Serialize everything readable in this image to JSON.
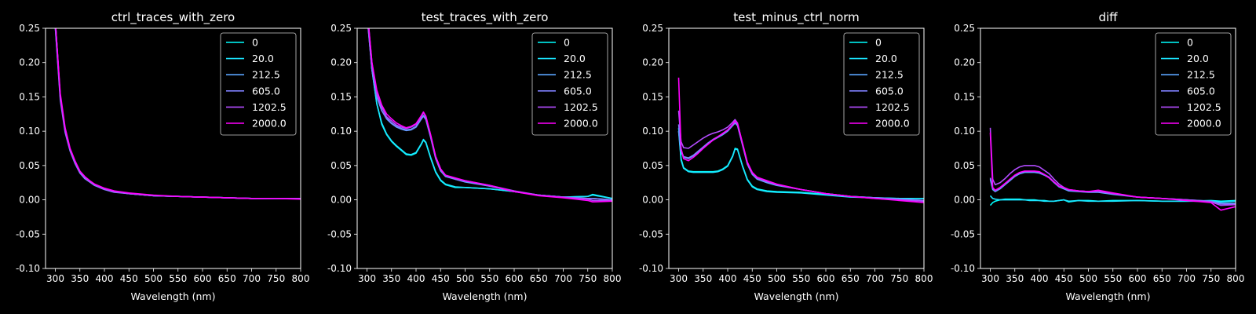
{
  "figure": {
    "background": "#000000",
    "foreground": "#ffffff"
  },
  "legend_labels": [
    "0",
    "20.0",
    "212.5",
    "605.0",
    "1202.5",
    "2000.0"
  ],
  "series_colors": [
    "#00ffff",
    "#1ae5ff",
    "#5aa5ff",
    "#7f80ff",
    "#b34cff",
    "#ff00ff"
  ],
  "chart_data": [
    {
      "type": "line",
      "title": "ctrl_traces_with_zero",
      "xlabel": "Wavelength (nm)",
      "xlim": [
        280,
        800
      ],
      "ylim": [
        -0.1,
        0.25
      ],
      "xticks": [
        300,
        350,
        400,
        450,
        500,
        550,
        600,
        650,
        700,
        750,
        800
      ],
      "yticks": [
        "-0.10",
        "-0.05",
        "0.00",
        "0.05",
        "0.10",
        "0.15",
        "0.20",
        "0.25"
      ],
      "legend_position": "upper right",
      "x": [
        300,
        310,
        320,
        330,
        340,
        350,
        360,
        370,
        380,
        400,
        420,
        450,
        500,
        550,
        600,
        650,
        700,
        750,
        800
      ],
      "series": [
        {
          "name": "0",
          "values": [
            0.26,
            0.15,
            0.1,
            0.072,
            0.055,
            0.04,
            0.032,
            0.027,
            0.022,
            0.016,
            0.012,
            0.009,
            0.006,
            0.005,
            0.004,
            0.003,
            0.002,
            0.002,
            0.002
          ]
        },
        {
          "name": "20.0",
          "values": [
            0.26,
            0.15,
            0.1,
            0.073,
            0.055,
            0.041,
            0.032,
            0.027,
            0.022,
            0.016,
            0.012,
            0.009,
            0.006,
            0.005,
            0.004,
            0.003,
            0.002,
            0.002,
            0.002
          ]
        },
        {
          "name": "212.5",
          "values": [
            0.25,
            0.15,
            0.1,
            0.072,
            0.054,
            0.04,
            0.031,
            0.026,
            0.021,
            0.016,
            0.012,
            0.009,
            0.006,
            0.005,
            0.004,
            0.003,
            0.002,
            0.002,
            0.002
          ]
        },
        {
          "name": "605.0",
          "values": [
            0.25,
            0.145,
            0.098,
            0.071,
            0.053,
            0.039,
            0.031,
            0.026,
            0.021,
            0.015,
            0.011,
            0.009,
            0.006,
            0.005,
            0.004,
            0.003,
            0.002,
            0.002,
            0.002
          ]
        },
        {
          "name": "1202.5",
          "values": [
            0.26,
            0.15,
            0.1,
            0.073,
            0.055,
            0.041,
            0.033,
            0.027,
            0.022,
            0.016,
            0.012,
            0.009,
            0.006,
            0.005,
            0.004,
            0.003,
            0.002,
            0.002,
            0.002
          ]
        },
        {
          "name": "2000.0",
          "values": [
            0.26,
            0.155,
            0.105,
            0.075,
            0.057,
            0.042,
            0.034,
            0.028,
            0.023,
            0.017,
            0.013,
            0.01,
            0.007,
            0.005,
            0.004,
            0.003,
            0.002,
            0.002,
            0.001
          ]
        }
      ]
    },
    {
      "type": "line",
      "title": "test_traces_with_zero",
      "xlabel": "Wavelength (nm)",
      "xlim": [
        280,
        800
      ],
      "ylim": [
        -0.1,
        0.25
      ],
      "xticks": [
        300,
        350,
        400,
        450,
        500,
        550,
        600,
        650,
        700,
        750,
        800
      ],
      "yticks": [
        "-0.10",
        "-0.05",
        "0.00",
        "0.05",
        "0.10",
        "0.15",
        "0.20",
        "0.25"
      ],
      "legend_position": "upper right",
      "x": [
        300,
        310,
        320,
        330,
        340,
        350,
        360,
        370,
        380,
        390,
        400,
        410,
        415,
        420,
        430,
        440,
        450,
        460,
        480,
        500,
        550,
        600,
        650,
        700,
        750,
        760,
        800
      ],
      "series": [
        {
          "name": "0",
          "values": [
            0.28,
            0.19,
            0.14,
            0.11,
            0.095,
            0.085,
            0.078,
            0.072,
            0.066,
            0.065,
            0.068,
            0.08,
            0.087,
            0.083,
            0.06,
            0.04,
            0.028,
            0.022,
            0.018,
            0.018,
            0.016,
            0.012,
            0.007,
            0.004,
            0.005,
            0.008,
            0.002
          ]
        },
        {
          "name": "20.0",
          "values": [
            0.28,
            0.19,
            0.14,
            0.112,
            0.096,
            0.086,
            0.079,
            0.073,
            0.067,
            0.066,
            0.069,
            0.081,
            0.088,
            0.084,
            0.061,
            0.041,
            0.029,
            0.023,
            0.019,
            0.018,
            0.016,
            0.012,
            0.007,
            0.004,
            0.005,
            0.007,
            0.002
          ]
        },
        {
          "name": "212.5",
          "values": [
            0.27,
            0.19,
            0.15,
            0.13,
            0.118,
            0.111,
            0.106,
            0.103,
            0.101,
            0.102,
            0.106,
            0.117,
            0.122,
            0.117,
            0.09,
            0.06,
            0.042,
            0.034,
            0.03,
            0.026,
            0.02,
            0.012,
            0.007,
            0.004,
            0.002,
            0.002,
            0.0
          ]
        },
        {
          "name": "605.0",
          "values": [
            0.27,
            0.19,
            0.15,
            0.13,
            0.119,
            0.112,
            0.107,
            0.104,
            0.102,
            0.103,
            0.107,
            0.118,
            0.123,
            0.118,
            0.091,
            0.061,
            0.043,
            0.035,
            0.03,
            0.027,
            0.02,
            0.012,
            0.007,
            0.004,
            0.002,
            0.002,
            0.0
          ]
        },
        {
          "name": "1202.5",
          "values": [
            0.28,
            0.2,
            0.155,
            0.135,
            0.121,
            0.115,
            0.109,
            0.106,
            0.104,
            0.106,
            0.11,
            0.121,
            0.127,
            0.121,
            0.093,
            0.063,
            0.045,
            0.036,
            0.031,
            0.028,
            0.021,
            0.013,
            0.007,
            0.004,
            0.001,
            -0.001,
            -0.001
          ]
        },
        {
          "name": "2000.0",
          "values": [
            0.28,
            0.2,
            0.16,
            0.138,
            0.125,
            0.118,
            0.112,
            0.108,
            0.105,
            0.107,
            0.111,
            0.122,
            0.128,
            0.122,
            0.094,
            0.063,
            0.045,
            0.036,
            0.032,
            0.028,
            0.021,
            0.012,
            0.006,
            0.003,
            -0.001,
            -0.003,
            -0.002
          ]
        }
      ]
    },
    {
      "type": "line",
      "title": "test_minus_ctrl_norm",
      "xlabel": "Wavelength (nm)",
      "xlim": [
        280,
        800
      ],
      "ylim": [
        -0.1,
        0.25
      ],
      "xticks": [
        300,
        350,
        400,
        450,
        500,
        550,
        600,
        650,
        700,
        750,
        800
      ],
      "yticks": [
        "-0.10",
        "-0.05",
        "0.00",
        "0.05",
        "0.10",
        "0.15",
        "0.20",
        "0.25"
      ],
      "legend_position": "upper right",
      "x": [
        300,
        305,
        310,
        320,
        330,
        340,
        350,
        360,
        370,
        380,
        390,
        400,
        410,
        415,
        420,
        430,
        440,
        450,
        460,
        480,
        500,
        550,
        600,
        650,
        700,
        750,
        800
      ],
      "series": [
        {
          "name": "0",
          "values": [
            0.105,
            0.06,
            0.047,
            0.042,
            0.041,
            0.041,
            0.041,
            0.041,
            0.041,
            0.042,
            0.045,
            0.05,
            0.064,
            0.075,
            0.074,
            0.05,
            0.03,
            0.02,
            0.016,
            0.013,
            0.012,
            0.011,
            0.008,
            0.005,
            0.003,
            0.002,
            0.002
          ]
        },
        {
          "name": "20.0",
          "values": [
            0.1,
            0.058,
            0.046,
            0.041,
            0.04,
            0.04,
            0.04,
            0.04,
            0.04,
            0.041,
            0.044,
            0.049,
            0.063,
            0.074,
            0.073,
            0.049,
            0.029,
            0.019,
            0.015,
            0.012,
            0.011,
            0.01,
            0.007,
            0.004,
            0.003,
            0.002,
            0.002
          ]
        },
        {
          "name": "212.5",
          "values": [
            0.1,
            0.07,
            0.062,
            0.06,
            0.064,
            0.07,
            0.076,
            0.082,
            0.087,
            0.091,
            0.095,
            0.1,
            0.108,
            0.112,
            0.108,
            0.08,
            0.052,
            0.037,
            0.03,
            0.025,
            0.021,
            0.015,
            0.009,
            0.005,
            0.003,
            0.001,
            -0.001
          ]
        },
        {
          "name": "605.0",
          "values": [
            0.11,
            0.072,
            0.063,
            0.061,
            0.065,
            0.071,
            0.077,
            0.083,
            0.088,
            0.092,
            0.096,
            0.101,
            0.109,
            0.113,
            0.109,
            0.081,
            0.053,
            0.038,
            0.031,
            0.026,
            0.022,
            0.015,
            0.009,
            0.005,
            0.003,
            0.001,
            -0.001
          ]
        },
        {
          "name": "1202.5",
          "values": [
            0.13,
            0.085,
            0.076,
            0.075,
            0.08,
            0.085,
            0.09,
            0.094,
            0.097,
            0.099,
            0.102,
            0.106,
            0.113,
            0.117,
            0.112,
            0.082,
            0.054,
            0.039,
            0.032,
            0.027,
            0.022,
            0.015,
            0.009,
            0.005,
            0.002,
            0.0,
            -0.002
          ]
        },
        {
          "name": "2000.0",
          "values": [
            0.178,
            0.075,
            0.06,
            0.057,
            0.062,
            0.068,
            0.075,
            0.081,
            0.087,
            0.092,
            0.097,
            0.102,
            0.11,
            0.115,
            0.111,
            0.083,
            0.055,
            0.04,
            0.033,
            0.028,
            0.023,
            0.015,
            0.009,
            0.005,
            0.002,
            -0.001,
            -0.004
          ]
        }
      ]
    },
    {
      "type": "line",
      "title": "diff",
      "xlabel": "Wavelength (nm)",
      "xlim": [
        280,
        800
      ],
      "ylim": [
        -0.1,
        0.25
      ],
      "xticks": [
        300,
        350,
        400,
        450,
        500,
        550,
        600,
        650,
        700,
        750,
        800
      ],
      "yticks": [
        "-0.10",
        "-0.05",
        "0.00",
        "0.05",
        "0.10",
        "0.15",
        "0.20",
        "0.25"
      ],
      "legend_position": "upper right",
      "x": [
        300,
        305,
        310,
        320,
        330,
        340,
        350,
        360,
        370,
        380,
        390,
        400,
        410,
        420,
        430,
        440,
        450,
        460,
        480,
        500,
        520,
        550,
        600,
        650,
        700,
        750,
        770,
        800
      ],
      "series": [
        {
          "name": "0",
          "values": [
            -0.008,
            -0.004,
            -0.002,
            0.0,
            0.001,
            0.001,
            0.001,
            0.001,
            0.0,
            0.0,
            0.0,
            -0.001,
            -0.001,
            -0.002,
            -0.002,
            -0.001,
            0.0,
            -0.003,
            -0.001,
            -0.001,
            -0.002,
            -0.001,
            -0.001,
            -0.002,
            -0.002,
            -0.001,
            -0.002,
            -0.001
          ]
        },
        {
          "name": "20.0",
          "values": [
            0.006,
            0.002,
            0.001,
            0.0,
            0.0,
            0.0,
            0.0,
            0.0,
            0.0,
            -0.001,
            -0.001,
            -0.001,
            -0.002,
            -0.002,
            -0.002,
            -0.001,
            0.0,
            -0.002,
            -0.001,
            -0.002,
            -0.002,
            -0.002,
            -0.001,
            -0.002,
            -0.002,
            -0.002,
            -0.003,
            -0.002
          ]
        },
        {
          "name": "212.5",
          "values": [
            0.03,
            0.015,
            0.012,
            0.016,
            0.022,
            0.028,
            0.034,
            0.038,
            0.04,
            0.04,
            0.04,
            0.039,
            0.036,
            0.032,
            0.025,
            0.019,
            0.016,
            0.013,
            0.012,
            0.011,
            0.011,
            0.008,
            0.004,
            0.002,
            0.0,
            -0.002,
            -0.005,
            -0.005
          ]
        },
        {
          "name": "605.0",
          "values": [
            0.032,
            0.017,
            0.013,
            0.017,
            0.023,
            0.029,
            0.035,
            0.039,
            0.041,
            0.041,
            0.041,
            0.04,
            0.037,
            0.033,
            0.026,
            0.02,
            0.017,
            0.014,
            0.013,
            0.012,
            0.012,
            0.009,
            0.004,
            0.002,
            0.0,
            -0.002,
            -0.006,
            -0.006
          ]
        },
        {
          "name": "1202.5",
          "values": [
            0.105,
            0.03,
            0.022,
            0.025,
            0.031,
            0.038,
            0.044,
            0.048,
            0.05,
            0.05,
            0.05,
            0.048,
            0.043,
            0.038,
            0.03,
            0.023,
            0.018,
            0.015,
            0.013,
            0.012,
            0.012,
            0.009,
            0.004,
            0.002,
            0.0,
            -0.003,
            -0.008,
            -0.007
          ]
        },
        {
          "name": "2000.0",
          "values": [
            0.098,
            0.018,
            0.014,
            0.018,
            0.024,
            0.03,
            0.036,
            0.04,
            0.042,
            0.042,
            0.042,
            0.041,
            0.037,
            0.032,
            0.026,
            0.02,
            0.018,
            0.015,
            0.013,
            0.012,
            0.014,
            0.01,
            0.004,
            0.002,
            -0.001,
            -0.004,
            -0.015,
            -0.01
          ]
        }
      ]
    }
  ]
}
